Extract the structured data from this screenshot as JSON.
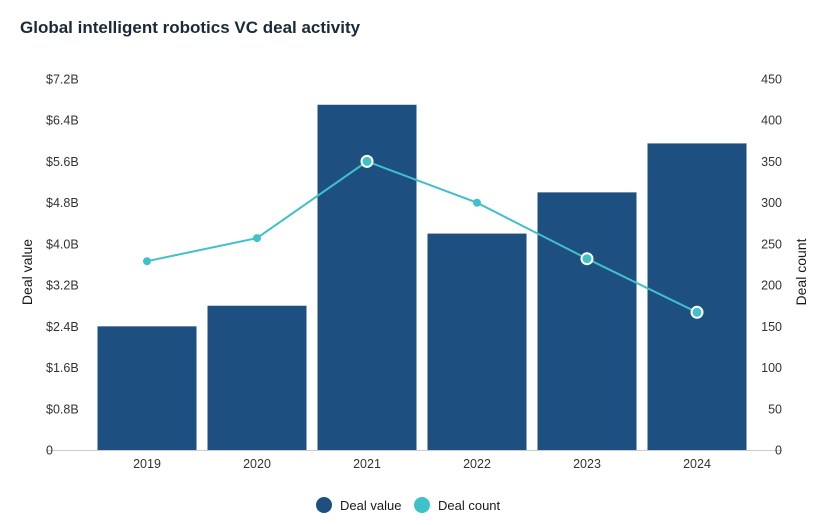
{
  "title": "Global intelligent robotics VC deal activity",
  "colors": {
    "bar": "#1d4f80",
    "line": "#3fc1c9",
    "axis": "#cccccc",
    "text": "#333333"
  },
  "chart_data": {
    "type": "bar",
    "categories": [
      "2019",
      "2020",
      "2021",
      "2022",
      "2023",
      "2024"
    ],
    "series": [
      {
        "name": "Deal value",
        "type": "bar",
        "axis": "left",
        "values": [
          2.4,
          2.8,
          6.7,
          4.2,
          5.0,
          5.95
        ]
      },
      {
        "name": "Deal count",
        "type": "line",
        "axis": "right",
        "values": [
          229,
          257,
          350,
          300,
          232,
          167
        ]
      }
    ],
    "y_left": {
      "label": "Deal value",
      "ylim": [
        0,
        7.2
      ],
      "ticks": [
        0,
        0.8,
        1.6,
        2.4,
        3.2,
        4.0,
        4.8,
        5.6,
        6.4,
        7.2
      ],
      "tick_labels": [
        "0",
        "$0.8B",
        "$1.6B",
        "$2.4B",
        "$3.2B",
        "$4.0B",
        "$4.8B",
        "$5.6B",
        "$6.4B",
        "$7.2B"
      ]
    },
    "y_right": {
      "label": "Deal count",
      "ylim": [
        0,
        450
      ],
      "ticks": [
        0,
        50,
        100,
        150,
        200,
        250,
        300,
        350,
        400,
        450
      ],
      "tick_labels": [
        "0",
        "50",
        "100",
        "150",
        "200",
        "250",
        "300",
        "350",
        "400",
        "450"
      ]
    },
    "highlighted_points": [
      "2021",
      "2023",
      "2024"
    ],
    "legend": {
      "position": "bottom",
      "entries": [
        "Deal value",
        "Deal count"
      ]
    },
    "grid": false
  }
}
